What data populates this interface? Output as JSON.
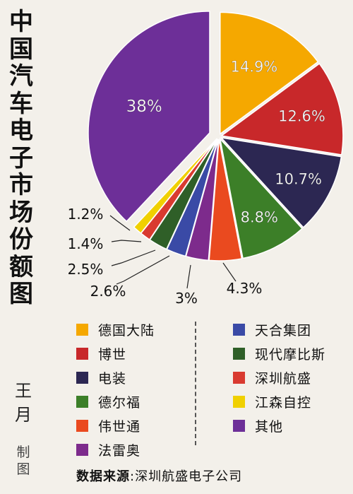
{
  "title": "中国汽车电子市场份额图",
  "author": "王月",
  "credit": "制图",
  "source": {
    "label": "数据来源",
    "separator": ":",
    "value": "深圳航盛电子公司"
  },
  "chart_data": {
    "type": "pie",
    "title": "中国汽车电子市场份额图",
    "slices": [
      {
        "name": "德国大陆",
        "value": 14.9,
        "label": "14.9%",
        "color": "#f5a800"
      },
      {
        "name": "博世",
        "value": 12.6,
        "label": "12.6%",
        "color": "#c8282a"
      },
      {
        "name": "电装",
        "value": 10.7,
        "label": "10.7%",
        "color": "#2c2752"
      },
      {
        "name": "德尔福",
        "value": 8.8,
        "label": "8.8%",
        "color": "#3c7f28"
      },
      {
        "name": "伟世通",
        "value": 4.3,
        "label": "4.3%",
        "color": "#ea4a1f"
      },
      {
        "name": "法雷奥",
        "value": 3,
        "label": "3%",
        "color": "#7d2b8c"
      },
      {
        "name": "天合集团",
        "value": 2.6,
        "label": "2.6%",
        "color": "#3a4aa6"
      },
      {
        "name": "现代摩比斯",
        "value": 2.5,
        "label": "2.5%",
        "color": "#2f5f28"
      },
      {
        "name": "深圳航盛",
        "value": 1.4,
        "label": "1.4%",
        "color": "#d93a30"
      },
      {
        "name": "江森自控",
        "value": 1.2,
        "label": "1.2%",
        "color": "#f0d000"
      },
      {
        "name": "其他",
        "value": 38,
        "label": "38%",
        "color": "#6d2f98"
      }
    ],
    "legend": {
      "left": [
        "德国大陆",
        "博世",
        "电装",
        "德尔福",
        "伟世通",
        "法雷奥"
      ],
      "right": [
        "天合集团",
        "现代摩比斯",
        "深圳航盛",
        "江森自控",
        "其他"
      ]
    },
    "label_text_color": "#ffffff",
    "outside_label_color": "#111111"
  }
}
